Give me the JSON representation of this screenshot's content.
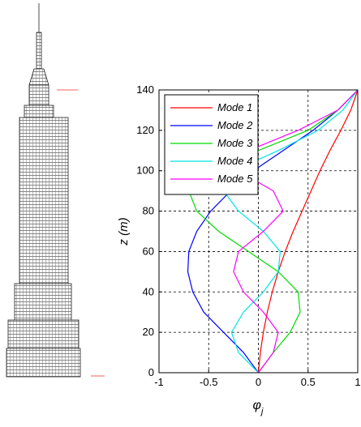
{
  "chart_data": {
    "type": "line",
    "xlabel": {
      "symbol": "φ",
      "subscript": "j"
    },
    "ylabel": "z (m)",
    "xlim": [
      -1,
      1
    ],
    "xticks": [
      -1,
      -0.5,
      0,
      0.5,
      1
    ],
    "ylim": [
      0,
      140
    ],
    "yticks": [
      0,
      20,
      40,
      60,
      80,
      100,
      120,
      140
    ],
    "grid": true,
    "legend": "upper left",
    "y": [
      0,
      10,
      20,
      30,
      40,
      50,
      60,
      70,
      80,
      90,
      100,
      110,
      120,
      130,
      140
    ],
    "series": [
      {
        "name": "Mode 1",
        "color": "#ff0000",
        "x": [
          0,
          0.02,
          0.05,
          0.09,
          0.14,
          0.2,
          0.27,
          0.35,
          0.44,
          0.53,
          0.62,
          0.72,
          0.83,
          0.93,
          1
        ]
      },
      {
        "name": "Mode 2",
        "color": "#0000ff",
        "x": [
          0,
          -0.15,
          -0.35,
          -0.55,
          -0.66,
          -0.71,
          -0.7,
          -0.62,
          -0.48,
          -0.28,
          -0.05,
          0.25,
          0.55,
          0.8,
          1
        ]
      },
      {
        "name": "Mode 3",
        "color": "#00dd00",
        "x": [
          0,
          0.15,
          0.32,
          0.42,
          0.4,
          0.2,
          -0.1,
          -0.4,
          -0.62,
          -0.7,
          -0.5,
          0,
          0.5,
          0.8,
          1
        ]
      },
      {
        "name": "Mode 4",
        "color": "#00e5e5",
        "x": [
          0,
          -0.2,
          -0.27,
          -0.15,
          0.05,
          0.2,
          0.22,
          0.05,
          -0.2,
          -0.35,
          -0.25,
          0.2,
          0.6,
          0.85,
          1
        ]
      },
      {
        "name": "Mode 5",
        "color": "#ff00ff",
        "x": [
          0,
          0.15,
          0.2,
          0.05,
          -0.15,
          -0.25,
          -0.2,
          0.05,
          0.25,
          0.15,
          -0.2,
          -0.1,
          0.4,
          0.8,
          1
        ]
      }
    ]
  }
}
